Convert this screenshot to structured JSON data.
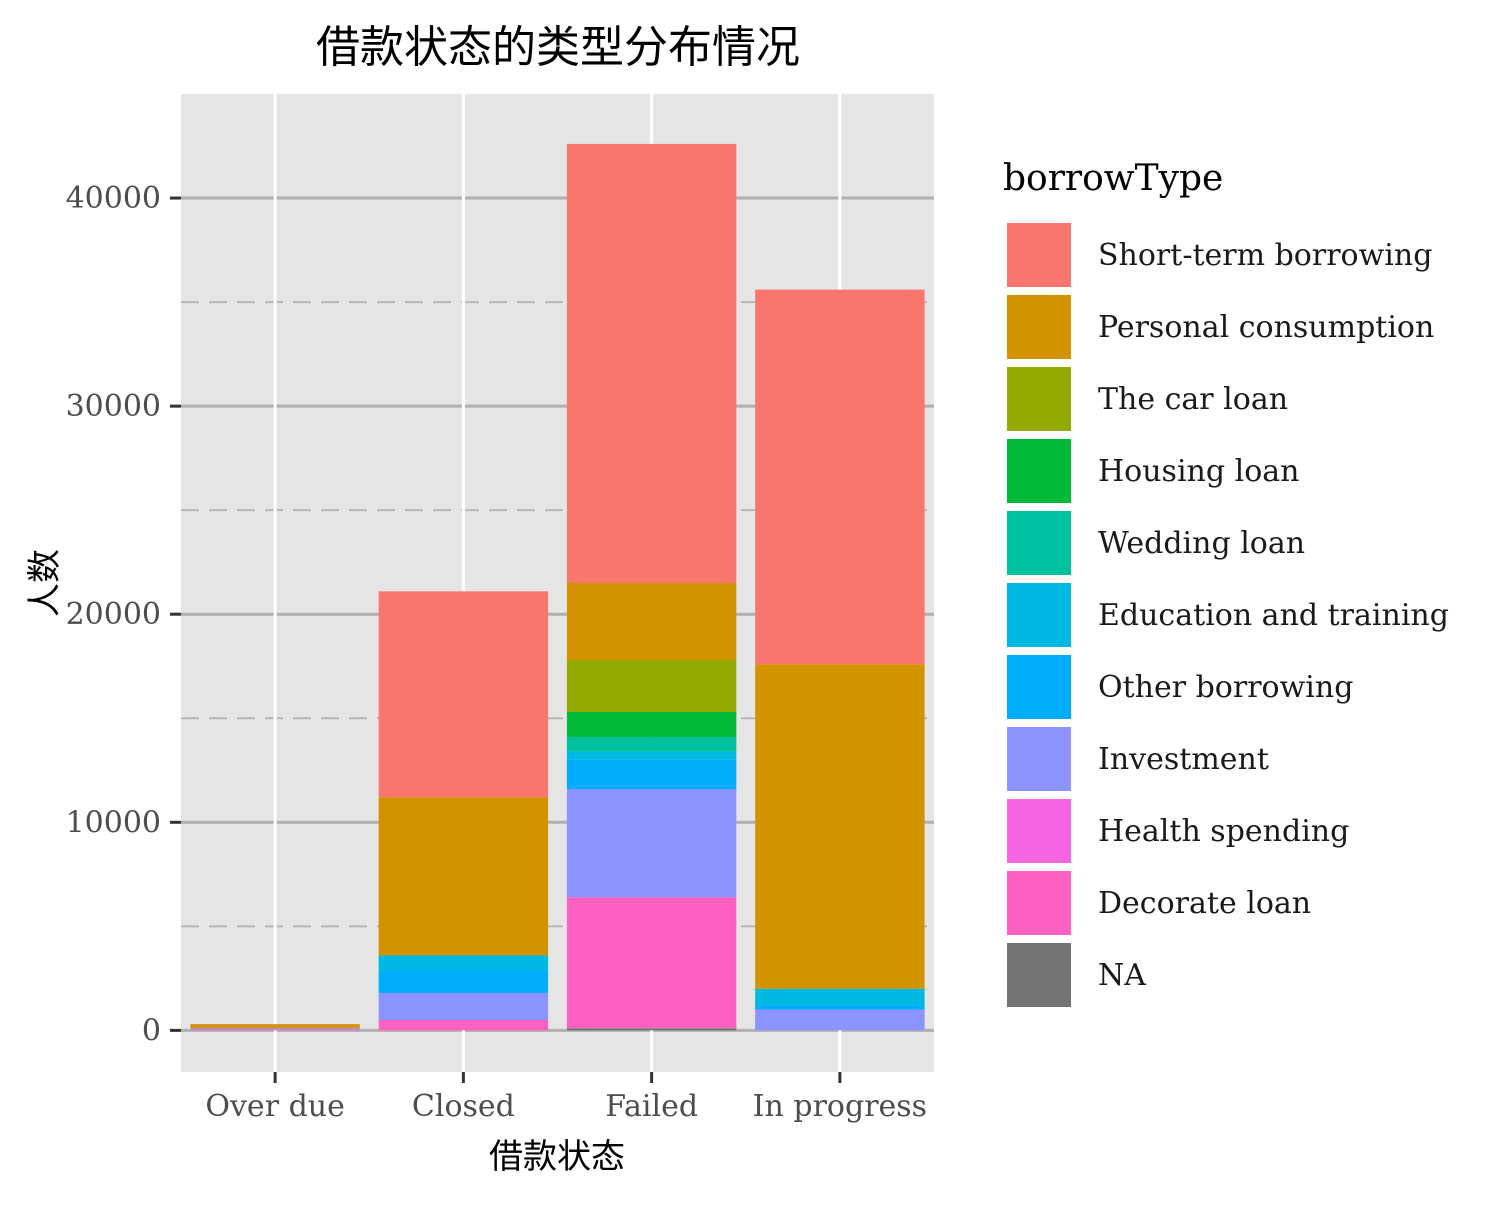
{
  "chart_data": {
    "type": "bar",
    "stacked": true,
    "title": "借款状态的类型分布情况",
    "xlabel": "借款状态",
    "ylabel": "人数",
    "categories": [
      "Over due",
      "Closed",
      "Failed",
      "In progress"
    ],
    "ylim": [
      -2000,
      45000
    ],
    "y_ticks": [
      0,
      10000,
      20000,
      30000,
      40000
    ],
    "grid": true,
    "legend": {
      "title": "borrowType",
      "position": "right"
    },
    "series": [
      {
        "name": "Short-term borrowing",
        "color": "#F8766D",
        "values": [
          0,
          9900,
          21100,
          18000
        ]
      },
      {
        "name": "Personal consumption",
        "color": "#D39200",
        "values": [
          200,
          7600,
          3700,
          15600
        ]
      },
      {
        "name": "The car loan",
        "color": "#93AA00",
        "values": [
          0,
          0,
          2500,
          0
        ]
      },
      {
        "name": "Housing loan",
        "color": "#00BA38",
        "values": [
          0,
          0,
          1200,
          0
        ]
      },
      {
        "name": "Wedding loan",
        "color": "#00C19F",
        "values": [
          0,
          0,
          700,
          0
        ]
      },
      {
        "name": "Education and training",
        "color": "#00B9E3",
        "values": [
          0,
          700,
          400,
          800
        ]
      },
      {
        "name": "Other borrowing",
        "color": "#00ADFA",
        "values": [
          0,
          1100,
          1400,
          200
        ]
      },
      {
        "name": "Investment",
        "color": "#8B93FF",
        "values": [
          50,
          1300,
          5200,
          1000
        ]
      },
      {
        "name": "Health spending",
        "color": "#F564E3",
        "values": [
          0,
          0,
          0,
          0
        ]
      },
      {
        "name": "Decorate loan",
        "color": "#FF61C3",
        "values": [
          50,
          500,
          6300,
          0
        ]
      },
      {
        "name": "NA",
        "color": "#737373",
        "values": [
          0,
          0,
          100,
          0
        ]
      }
    ]
  }
}
